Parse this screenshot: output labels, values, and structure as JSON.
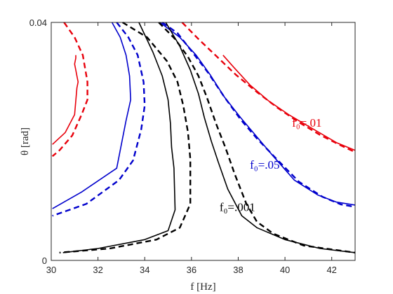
{
  "chart_data": {
    "type": "line",
    "title": "",
    "xlabel": "f [Hz]",
    "ylabel": "θ [rad]",
    "xlim": [
      30,
      43
    ],
    "ylim": [
      0,
      0.04
    ],
    "x_ticks": [
      "30",
      "32",
      "34",
      "36",
      "38",
      "40",
      "42"
    ],
    "y_ticks": [
      "0",
      "0.04"
    ],
    "grid": false,
    "line_styles": [
      "solid",
      "dashed"
    ],
    "annotations": [
      {
        "text": "f₀=.01",
        "color": "#e8000b"
      },
      {
        "text": "f₀=.05",
        "color": "#0000cc"
      },
      {
        "text": "f₀=.001",
        "color": "#000000"
      }
    ],
    "series": [
      {
        "color": "#e8000b",
        "dash": false,
        "points": [
          [
            31.05,
            0.0345
          ],
          [
            31.05,
            0.034
          ],
          [
            31.0,
            0.033
          ],
          [
            31.05,
            0.032
          ],
          [
            31.1,
            0.031
          ],
          [
            31.15,
            0.03
          ],
          [
            31.1,
            0.029
          ],
          [
            31.0,
            0.0245
          ],
          [
            30.6,
            0.0215
          ],
          [
            30.05,
            0.0195
          ]
        ]
      },
      {
        "color": "#e8000b",
        "dash": false,
        "points": [
          [
            37.35,
            0.0345
          ],
          [
            37.8,
            0.0325
          ],
          [
            38.5,
            0.0295
          ],
          [
            39.3,
            0.0268
          ],
          [
            40.2,
            0.0244
          ],
          [
            41.2,
            0.0221
          ],
          [
            42.2,
            0.0198
          ],
          [
            43.0,
            0.0185
          ]
        ]
      },
      {
        "color": "#e8000b",
        "dash": true,
        "points": [
          [
            30.55,
            0.04
          ],
          [
            31.0,
            0.0375
          ],
          [
            31.35,
            0.0345
          ],
          [
            31.55,
            0.03
          ],
          [
            31.55,
            0.027
          ],
          [
            31.3,
            0.0245
          ],
          [
            30.9,
            0.021
          ],
          [
            30.35,
            0.0185
          ],
          [
            30.05,
            0.0175
          ]
        ]
      },
      {
        "color": "#e8000b",
        "dash": true,
        "points": [
          [
            35.6,
            0.04
          ],
          [
            36.3,
            0.0372
          ],
          [
            37.1,
            0.0342
          ],
          [
            37.9,
            0.0312
          ],
          [
            38.8,
            0.0283
          ],
          [
            39.7,
            0.0256
          ],
          [
            40.6,
            0.0232
          ],
          [
            41.5,
            0.0211
          ],
          [
            42.4,
            0.0193
          ],
          [
            43.0,
            0.0182
          ]
        ]
      },
      {
        "color": "#0000cc",
        "dash": false,
        "points": [
          [
            32.6,
            0.04
          ],
          [
            32.95,
            0.0375
          ],
          [
            33.2,
            0.0345
          ],
          [
            33.35,
            0.031
          ],
          [
            33.4,
            0.027
          ],
          [
            33.2,
            0.0235
          ],
          [
            32.8,
            0.0155
          ],
          [
            31.3,
            0.0115
          ],
          [
            30.05,
            0.0087
          ]
        ]
      },
      {
        "color": "#0000cc",
        "dash": false,
        "points": [
          [
            34.65,
            0.04
          ],
          [
            35.5,
            0.0375
          ],
          [
            36.2,
            0.0345
          ],
          [
            36.8,
            0.0312
          ],
          [
            37.4,
            0.0275
          ],
          [
            38.1,
            0.024
          ],
          [
            38.9,
            0.0203
          ],
          [
            39.5,
            0.0175
          ],
          [
            40.4,
            0.0135
          ],
          [
            41.4,
            0.011
          ],
          [
            42.2,
            0.0098
          ],
          [
            43.0,
            0.0093
          ]
        ]
      },
      {
        "color": "#0000cc",
        "dash": true,
        "points": [
          [
            32.8,
            0.04
          ],
          [
            33.3,
            0.0375
          ],
          [
            33.7,
            0.0345
          ],
          [
            33.95,
            0.03
          ],
          [
            34.0,
            0.026
          ],
          [
            33.85,
            0.022
          ],
          [
            33.5,
            0.0168
          ],
          [
            32.9,
            0.0135
          ],
          [
            31.5,
            0.0095
          ],
          [
            30.05,
            0.0075
          ]
        ]
      },
      {
        "color": "#0000cc",
        "dash": true,
        "points": [
          [
            34.75,
            0.04
          ],
          [
            35.4,
            0.0382
          ],
          [
            36.0,
            0.0352
          ],
          [
            36.7,
            0.0316
          ],
          [
            37.4,
            0.0275
          ],
          [
            38.1,
            0.0237
          ],
          [
            38.8,
            0.0205
          ],
          [
            39.6,
            0.0172
          ],
          [
            40.6,
            0.0132
          ],
          [
            41.6,
            0.0107
          ],
          [
            42.4,
            0.0094
          ],
          [
            43.0,
            0.009
          ]
        ]
      },
      {
        "color": "#000000",
        "dash": false,
        "points": [
          [
            33.75,
            0.04
          ],
          [
            34.35,
            0.035
          ],
          [
            34.75,
            0.031
          ],
          [
            35.0,
            0.027
          ],
          [
            35.1,
            0.023
          ],
          [
            35.15,
            0.019
          ],
          [
            35.25,
            0.0155
          ],
          [
            35.3,
            0.0085
          ],
          [
            35.0,
            0.005
          ],
          [
            34.0,
            0.0035
          ],
          [
            32.0,
            0.002
          ],
          [
            30.5,
            0.0013
          ]
        ]
      },
      {
        "color": "#000000",
        "dash": false,
        "points": [
          [
            34.9,
            0.04
          ],
          [
            35.5,
            0.036
          ],
          [
            35.95,
            0.032
          ],
          [
            36.3,
            0.028
          ],
          [
            36.55,
            0.024
          ],
          [
            36.85,
            0.02
          ],
          [
            37.15,
            0.0165
          ],
          [
            37.55,
            0.012
          ],
          [
            38.15,
            0.0075
          ],
          [
            38.8,
            0.0055
          ],
          [
            40.0,
            0.0035
          ],
          [
            41.5,
            0.002
          ],
          [
            43.0,
            0.0013
          ]
        ]
      },
      {
        "color": "#000000",
        "dash": true,
        "points": [
          [
            33.05,
            0.04
          ],
          [
            34.1,
            0.0375
          ],
          [
            34.95,
            0.0335
          ],
          [
            35.4,
            0.03
          ],
          [
            35.65,
            0.026
          ],
          [
            35.85,
            0.0215
          ],
          [
            35.95,
            0.017
          ],
          [
            35.95,
            0.0095
          ],
          [
            35.5,
            0.0055
          ],
          [
            34.5,
            0.0035
          ],
          [
            32.5,
            0.002
          ],
          [
            30.35,
            0.0013
          ]
        ]
      },
      {
        "color": "#000000",
        "dash": true,
        "points": [
          [
            34.6,
            0.04
          ],
          [
            35.3,
            0.0372
          ],
          [
            35.85,
            0.0342
          ],
          [
            36.3,
            0.031
          ],
          [
            36.65,
            0.0275
          ],
          [
            37.05,
            0.023
          ],
          [
            37.45,
            0.019
          ],
          [
            37.85,
            0.0145
          ],
          [
            38.35,
            0.0095
          ],
          [
            38.8,
            0.0065
          ],
          [
            39.5,
            0.0045
          ],
          [
            40.8,
            0.0025
          ],
          [
            43.0,
            0.0013
          ]
        ]
      }
    ]
  }
}
